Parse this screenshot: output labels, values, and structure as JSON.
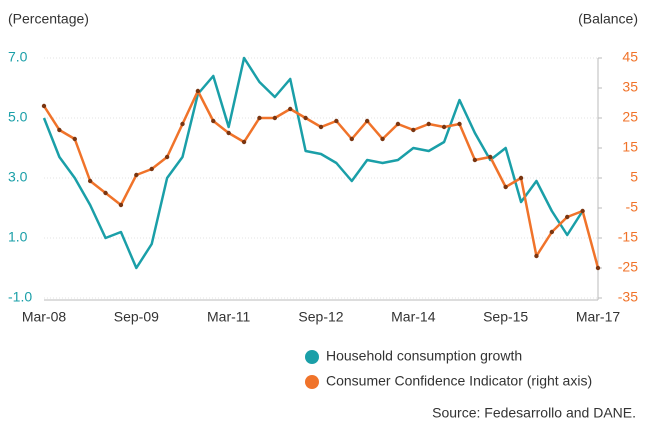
{
  "chart_data": {
    "type": "line",
    "y_label": "(Percentage)",
    "y2_label": "(Balance)",
    "source": "Source: Fedesarrollo and DANE.",
    "categories": [
      "Mar-08",
      null,
      null,
      null,
      null,
      null,
      "Sep-09",
      null,
      null,
      null,
      null,
      null,
      "Mar-11",
      null,
      null,
      null,
      null,
      null,
      "Sep-12",
      null,
      null,
      null,
      null,
      null,
      "Mar-14",
      null,
      null,
      null,
      null,
      null,
      "Sep-15",
      null,
      null,
      null,
      null,
      null,
      "Mar-17"
    ],
    "series": [
      {
        "name": "Household consumption growth",
        "color": "#1a9fa8",
        "axis": "y",
        "values": [
          5.0,
          3.7,
          3.0,
          2.1,
          1.0,
          1.2,
          0.0,
          0.8,
          3.0,
          3.7,
          5.8,
          6.4,
          4.7,
          7.0,
          6.2,
          5.7,
          6.3,
          3.9,
          3.8,
          3.5,
          2.9,
          3.6,
          3.5,
          3.6,
          4.0,
          3.9,
          4.2,
          5.6,
          4.5,
          3.6,
          4.0,
          2.2,
          2.9,
          1.9,
          1.1,
          1.9,
          null
        ]
      },
      {
        "name": "Consumer Confidence Indicator (right axis)",
        "color": "#f0732a",
        "axis": "y2",
        "marker_color": "#7a3510",
        "values": [
          29,
          21,
          18,
          4,
          0,
          -4,
          6,
          8,
          12,
          23,
          34,
          24,
          20,
          17,
          25,
          25,
          28,
          25,
          22,
          24,
          18,
          24,
          18,
          23,
          21,
          23,
          22,
          23,
          11,
          12,
          2,
          5,
          -21,
          -13,
          -8,
          -6,
          -25
        ]
      }
    ],
    "ylim": [
      -1,
      7
    ],
    "yticks": [
      {
        "value": -1,
        "label": "-1.0"
      },
      {
        "value": 1,
        "label": "1.0"
      },
      {
        "value": 3,
        "label": "3.0"
      },
      {
        "value": 5,
        "label": "5.0"
      },
      {
        "value": 7,
        "label": "7.0"
      }
    ],
    "y2lim": [
      -35,
      45
    ],
    "y2ticks": [
      -35,
      -25,
      -15,
      -5,
      5,
      15,
      25,
      35,
      45
    ],
    "grid": true,
    "legend": "bottom"
  }
}
